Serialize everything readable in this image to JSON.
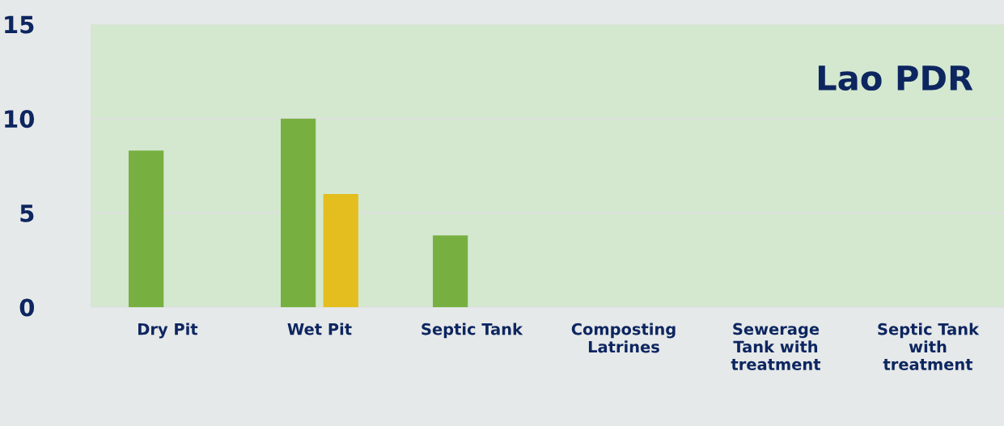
{
  "chart_data": {
    "type": "bar",
    "categories": [
      "Dry Pit",
      "Wet Pit",
      "Septic Tank",
      "Composting\nLatrines",
      "Sewerage\nTank with\ntreatment",
      "Septic Tank\nwith\ntreatment"
    ],
    "series": [
      {
        "color": "#77b041",
        "values": [
          8.3,
          10,
          3.8,
          0,
          0,
          0
        ]
      },
      {
        "color": "#e3be1e",
        "values": [
          0,
          6,
          0,
          0,
          0,
          0
        ]
      }
    ],
    "ylim": [
      0,
      15
    ],
    "yticks": [
      0,
      5,
      10,
      15
    ],
    "grid": "y",
    "annotations": [
      "Lao PDR"
    ]
  }
}
